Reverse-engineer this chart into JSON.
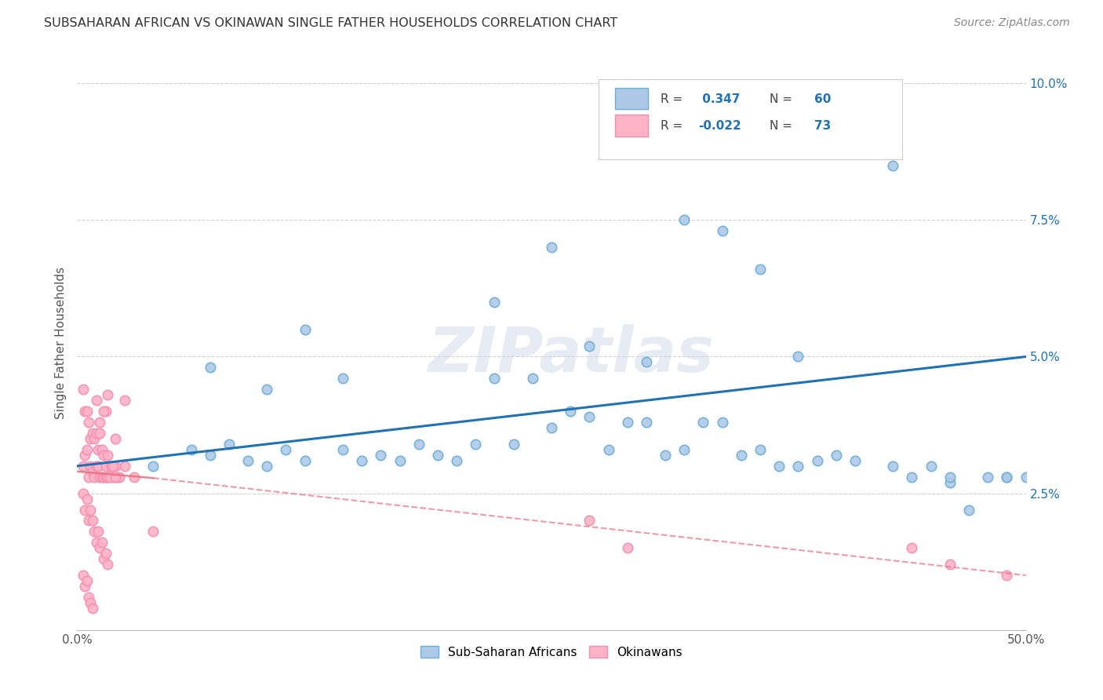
{
  "title": "SUBSAHARAN AFRICAN VS OKINAWAN SINGLE FATHER HOUSEHOLDS CORRELATION CHART",
  "source": "Source: ZipAtlas.com",
  "ylabel": "Single Father Households",
  "x_min": 0.0,
  "x_max": 0.5,
  "y_min": 0.0,
  "y_max": 0.105,
  "x_ticks": [
    0.0,
    0.1,
    0.2,
    0.3,
    0.4,
    0.5
  ],
  "x_tick_labels": [
    "0.0%",
    "",
    "",
    "",
    "",
    "50.0%"
  ],
  "y_ticks": [
    0.025,
    0.05,
    0.075,
    0.1
  ],
  "y_tick_labels": [
    "2.5%",
    "5.0%",
    "7.5%",
    "10.0%"
  ],
  "blue_R": 0.347,
  "blue_N": 60,
  "pink_R": -0.022,
  "pink_N": 73,
  "blue_scatter_color_face": "#aec9e8",
  "blue_scatter_color_edge": "#6baed6",
  "pink_scatter_color_face": "#ffb3c6",
  "pink_scatter_color_edge": "#f48fb1",
  "blue_line_color": "#2171b5",
  "pink_line_color": "#e87080",
  "watermark": "ZIPatlas",
  "legend_blue_label": "Sub-Saharan Africans",
  "legend_pink_label": "Okinawans",
  "blue_line_x0": 0.0,
  "blue_line_y0": 0.03,
  "blue_line_x1": 0.5,
  "blue_line_y1": 0.05,
  "pink_line_x0": 0.0,
  "pink_line_y0": 0.029,
  "pink_line_x1": 0.5,
  "pink_line_y1": 0.01,
  "blue_scatter_x": [
    0.04,
    0.06,
    0.07,
    0.08,
    0.09,
    0.1,
    0.11,
    0.12,
    0.14,
    0.15,
    0.16,
    0.17,
    0.18,
    0.19,
    0.2,
    0.21,
    0.22,
    0.23,
    0.24,
    0.25,
    0.26,
    0.27,
    0.28,
    0.29,
    0.3,
    0.31,
    0.32,
    0.33,
    0.34,
    0.35,
    0.36,
    0.37,
    0.38,
    0.39,
    0.4,
    0.41,
    0.43,
    0.44,
    0.45,
    0.46,
    0.47,
    0.48,
    0.49,
    0.5,
    0.07,
    0.1,
    0.12,
    0.14,
    0.22,
    0.25,
    0.27,
    0.3,
    0.32,
    0.34,
    0.36,
    0.38,
    0.4,
    0.43,
    0.46,
    0.49
  ],
  "blue_scatter_y": [
    0.03,
    0.033,
    0.032,
    0.034,
    0.031,
    0.03,
    0.033,
    0.031,
    0.033,
    0.031,
    0.032,
    0.031,
    0.034,
    0.032,
    0.031,
    0.034,
    0.046,
    0.034,
    0.046,
    0.037,
    0.04,
    0.039,
    0.033,
    0.038,
    0.038,
    0.032,
    0.033,
    0.038,
    0.038,
    0.032,
    0.033,
    0.03,
    0.03,
    0.031,
    0.032,
    0.031,
    0.03,
    0.028,
    0.03,
    0.027,
    0.022,
    0.028,
    0.028,
    0.028,
    0.048,
    0.044,
    0.055,
    0.046,
    0.06,
    0.07,
    0.052,
    0.049,
    0.075,
    0.073,
    0.066,
    0.05,
    0.09,
    0.085,
    0.028,
    0.028
  ],
  "pink_scatter_x": [
    0.003,
    0.004,
    0.005,
    0.006,
    0.007,
    0.008,
    0.009,
    0.01,
    0.011,
    0.012,
    0.013,
    0.014,
    0.015,
    0.016,
    0.017,
    0.018,
    0.019,
    0.02,
    0.021,
    0.022,
    0.003,
    0.004,
    0.005,
    0.006,
    0.007,
    0.008,
    0.009,
    0.01,
    0.011,
    0.012,
    0.013,
    0.014,
    0.015,
    0.016,
    0.017,
    0.018,
    0.019,
    0.02,
    0.003,
    0.004,
    0.005,
    0.006,
    0.007,
    0.008,
    0.009,
    0.01,
    0.011,
    0.012,
    0.013,
    0.014,
    0.015,
    0.016,
    0.003,
    0.004,
    0.005,
    0.006,
    0.007,
    0.008,
    0.025,
    0.03,
    0.04,
    0.27,
    0.29,
    0.44,
    0.46,
    0.49,
    0.015,
    0.02,
    0.025,
    0.01,
    0.012,
    0.014,
    0.016
  ],
  "pink_scatter_y": [
    0.03,
    0.032,
    0.033,
    0.028,
    0.03,
    0.029,
    0.028,
    0.03,
    0.03,
    0.028,
    0.028,
    0.028,
    0.028,
    0.028,
    0.03,
    0.03,
    0.028,
    0.03,
    0.028,
    0.028,
    0.044,
    0.04,
    0.04,
    0.038,
    0.035,
    0.036,
    0.035,
    0.036,
    0.033,
    0.036,
    0.033,
    0.032,
    0.03,
    0.032,
    0.028,
    0.03,
    0.03,
    0.028,
    0.025,
    0.022,
    0.024,
    0.02,
    0.022,
    0.02,
    0.018,
    0.016,
    0.018,
    0.015,
    0.016,
    0.013,
    0.014,
    0.012,
    0.01,
    0.008,
    0.009,
    0.006,
    0.005,
    0.004,
    0.03,
    0.028,
    0.018,
    0.02,
    0.015,
    0.015,
    0.012,
    0.01,
    0.04,
    0.035,
    0.042,
    0.042,
    0.038,
    0.04,
    0.043
  ]
}
